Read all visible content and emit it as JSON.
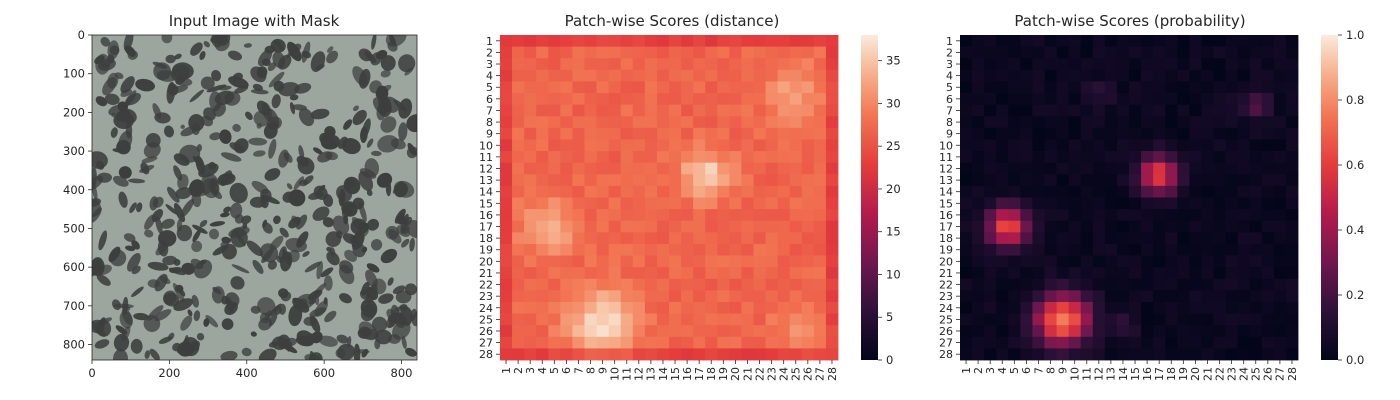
{
  "chart_data": [
    {
      "type": "image",
      "title": "Input Image with Mask",
      "x_ticks": [
        "0",
        "200",
        "400",
        "600",
        "800"
      ],
      "y_ticks": [
        "0",
        "100",
        "200",
        "300",
        "400",
        "500",
        "600",
        "700",
        "800"
      ],
      "xlim": [
        0,
        840
      ],
      "ylim": [
        0,
        840
      ],
      "image_description_colors": {
        "background": "#9da59f",
        "blotch": "#3c3f3e"
      }
    },
    {
      "type": "heatmap",
      "title": "Patch-wise Scores (distance)",
      "x_ticks": [
        "1",
        "2",
        "3",
        "4",
        "5",
        "6",
        "7",
        "8",
        "9",
        "10",
        "11",
        "12",
        "13",
        "14",
        "15",
        "16",
        "17",
        "18",
        "19",
        "20",
        "21",
        "22",
        "23",
        "24",
        "25",
        "26",
        "27",
        "28"
      ],
      "y_ticks": [
        "1",
        "2",
        "3",
        "4",
        "5",
        "6",
        "7",
        "8",
        "9",
        "10",
        "11",
        "12",
        "13",
        "14",
        "15",
        "16",
        "17",
        "18",
        "19",
        "20",
        "21",
        "22",
        "23",
        "24",
        "25",
        "26",
        "27",
        "28"
      ],
      "colorbar_ticks": [
        "0",
        "5",
        "10",
        "15",
        "20",
        "25",
        "30",
        "35"
      ],
      "vmin": 0,
      "vmax": 38,
      "colormap": "rocket",
      "base_value": 27,
      "edge_value": 22,
      "blobs": [
        {
          "row": 12.5,
          "col": 17.5,
          "radius": 2.0,
          "amp": 9
        },
        {
          "row": 17.0,
          "col": 4.5,
          "radius": 2.2,
          "amp": 7
        },
        {
          "row": 25.3,
          "col": 9.0,
          "radius": 2.8,
          "amp": 10
        },
        {
          "row": 5.5,
          "col": 25.0,
          "radius": 2.5,
          "amp": 5
        },
        {
          "row": 25.5,
          "col": 25.5,
          "radius": 2.0,
          "amp": 4
        }
      ]
    },
    {
      "type": "heatmap",
      "title": "Patch-wise Scores (probability)",
      "x_ticks": [
        "1",
        "2",
        "3",
        "4",
        "5",
        "6",
        "7",
        "8",
        "9",
        "10",
        "11",
        "12",
        "13",
        "14",
        "15",
        "16",
        "17",
        "18",
        "19",
        "20",
        "21",
        "22",
        "23",
        "24",
        "25",
        "26",
        "27",
        "28"
      ],
      "y_ticks": [
        "1",
        "2",
        "3",
        "4",
        "5",
        "6",
        "7",
        "8",
        "9",
        "10",
        "11",
        "12",
        "13",
        "14",
        "15",
        "16",
        "17",
        "18",
        "19",
        "20",
        "21",
        "22",
        "23",
        "24",
        "25",
        "26",
        "27",
        "28"
      ],
      "colorbar_ticks": [
        "0.0",
        "0.2",
        "0.4",
        "0.6",
        "0.8",
        "1.0"
      ],
      "vmin": 0,
      "vmax": 1,
      "colormap": "rocket",
      "blobs": [
        {
          "row": 12.5,
          "col": 17.0,
          "radius": 1.6,
          "amp": 0.6
        },
        {
          "row": 17.0,
          "col": 4.5,
          "radius": 1.7,
          "amp": 0.62
        },
        {
          "row": 25.0,
          "col": 9.0,
          "radius": 2.2,
          "amp": 0.75
        },
        {
          "row": 6.5,
          "col": 25.0,
          "radius": 1.3,
          "amp": 0.2
        },
        {
          "row": 5.5,
          "col": 12.0,
          "radius": 1.2,
          "amp": 0.1
        },
        {
          "row": 25.5,
          "col": 14.0,
          "radius": 1.0,
          "amp": 0.15
        }
      ]
    }
  ]
}
